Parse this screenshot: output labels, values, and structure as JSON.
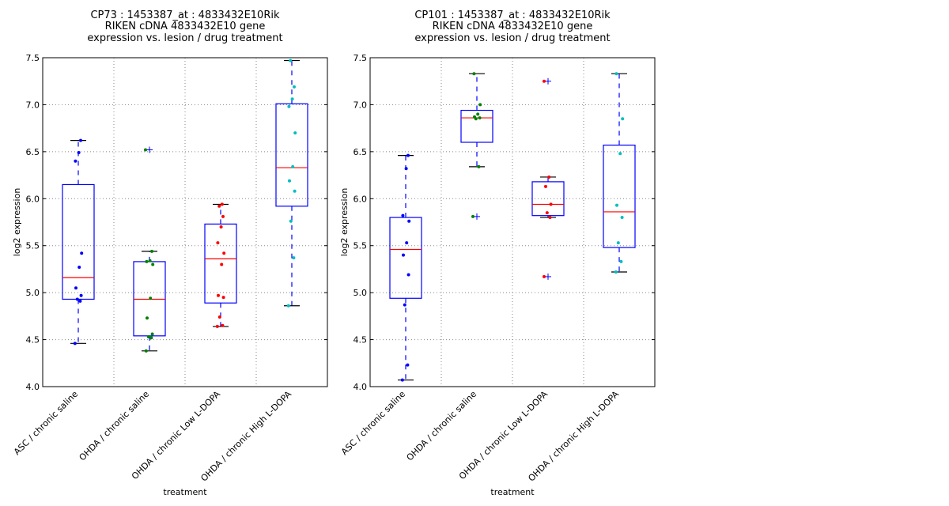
{
  "chart_data": [
    {
      "type": "box",
      "title_lines": [
        "CP73 : 1453387_at : 4833432E10Rik",
        "RIKEN cDNA 4833432E10 gene",
        "expression vs. lesion / drug treatment"
      ],
      "xlabel": "treatment",
      "ylabel": "log2 expression",
      "ylim": [
        4.0,
        7.5
      ],
      "yticks": [
        "4.0",
        "4.5",
        "5.0",
        "5.5",
        "6.0",
        "6.5",
        "7.0",
        "7.5"
      ],
      "grid": true,
      "categories": [
        "ASC / chronic saline",
        "OHDA / chronic saline",
        "OHDA / chronic Low L-DOPA",
        "OHDA / chronic High L-DOPA"
      ],
      "boxes": [
        {
          "q1": 4.93,
          "median": 5.16,
          "q3": 6.15,
          "whisker_low": 4.46,
          "whisker_high": 6.62,
          "outliers": [],
          "points": [
            4.46,
            4.91,
            4.93,
            4.97,
            5.05,
            5.27,
            5.42,
            6.4,
            6.49,
            6.62
          ]
        },
        {
          "q1": 4.54,
          "median": 4.93,
          "q3": 5.33,
          "whisker_low": 4.38,
          "whisker_high": 5.44,
          "outliers": [
            6.52
          ],
          "points": [
            4.38,
            4.52,
            4.53,
            4.56,
            4.73,
            4.94,
            5.3,
            5.33,
            5.34,
            5.44,
            6.52
          ]
        },
        {
          "q1": 4.89,
          "median": 5.36,
          "q3": 5.73,
          "whisker_low": 4.64,
          "whisker_high": 5.94,
          "outliers": [],
          "points": [
            4.64,
            4.65,
            4.74,
            4.95,
            4.97,
            5.3,
            5.42,
            5.53,
            5.7,
            5.81,
            5.92,
            5.94
          ]
        },
        {
          "q1": 5.92,
          "median": 6.33,
          "q3": 7.01,
          "whisker_low": 4.86,
          "whisker_high": 7.47,
          "outliers": [],
          "points": [
            4.86,
            5.37,
            5.76,
            6.08,
            6.19,
            6.34,
            6.7,
            6.98,
            7.06,
            7.19,
            7.47
          ]
        }
      ]
    },
    {
      "type": "box",
      "title_lines": [
        "CP101 : 1453387_at : 4833432E10Rik",
        "RIKEN cDNA 4833432E10 gene",
        "expression vs. lesion / drug treatment"
      ],
      "xlabel": "treatment",
      "ylabel": "log2 expression",
      "ylim": [
        4.0,
        7.5
      ],
      "yticks": [
        "4.0",
        "4.5",
        "5.0",
        "5.5",
        "6.0",
        "6.5",
        "7.0",
        "7.5"
      ],
      "grid": true,
      "categories": [
        "ASC / chronic saline",
        "OHDA / chronic saline",
        "OHDA / chronic Low L-DOPA",
        "OHDA / chronic High L-DOPA"
      ],
      "boxes": [
        {
          "q1": 4.94,
          "median": 5.46,
          "q3": 5.8,
          "whisker_low": 4.07,
          "whisker_high": 6.46,
          "outliers": [],
          "points": [
            4.07,
            4.23,
            4.87,
            5.19,
            5.4,
            5.53,
            5.76,
            5.82,
            6.32,
            6.46
          ]
        },
        {
          "q1": 6.6,
          "median": 6.86,
          "q3": 6.94,
          "whisker_low": 6.34,
          "whisker_high": 7.33,
          "outliers": [
            5.81
          ],
          "points": [
            5.81,
            6.34,
            6.85,
            6.86,
            6.87,
            6.9,
            7.0,
            7.33
          ]
        },
        {
          "q1": 5.82,
          "median": 5.94,
          "q3": 6.18,
          "whisker_low": 5.8,
          "whisker_high": 6.23,
          "outliers": [
            7.25,
            5.17
          ],
          "points": [
            5.17,
            5.8,
            5.85,
            5.94,
            6.13,
            6.23,
            7.25
          ]
        },
        {
          "q1": 5.48,
          "median": 5.86,
          "q3": 6.57,
          "whisker_low": 5.22,
          "whisker_high": 7.33,
          "outliers": [],
          "points": [
            5.22,
            5.33,
            5.53,
            5.8,
            5.93,
            6.48,
            6.85,
            7.33
          ]
        }
      ]
    }
  ],
  "colors": {
    "box": "#0000ff",
    "median": "#ff0000",
    "cap": "#000000",
    "grid": "#888888",
    "point_colors": [
      "#0000ff",
      "#008000",
      "#ff0000",
      "#00bfbf"
    ]
  }
}
